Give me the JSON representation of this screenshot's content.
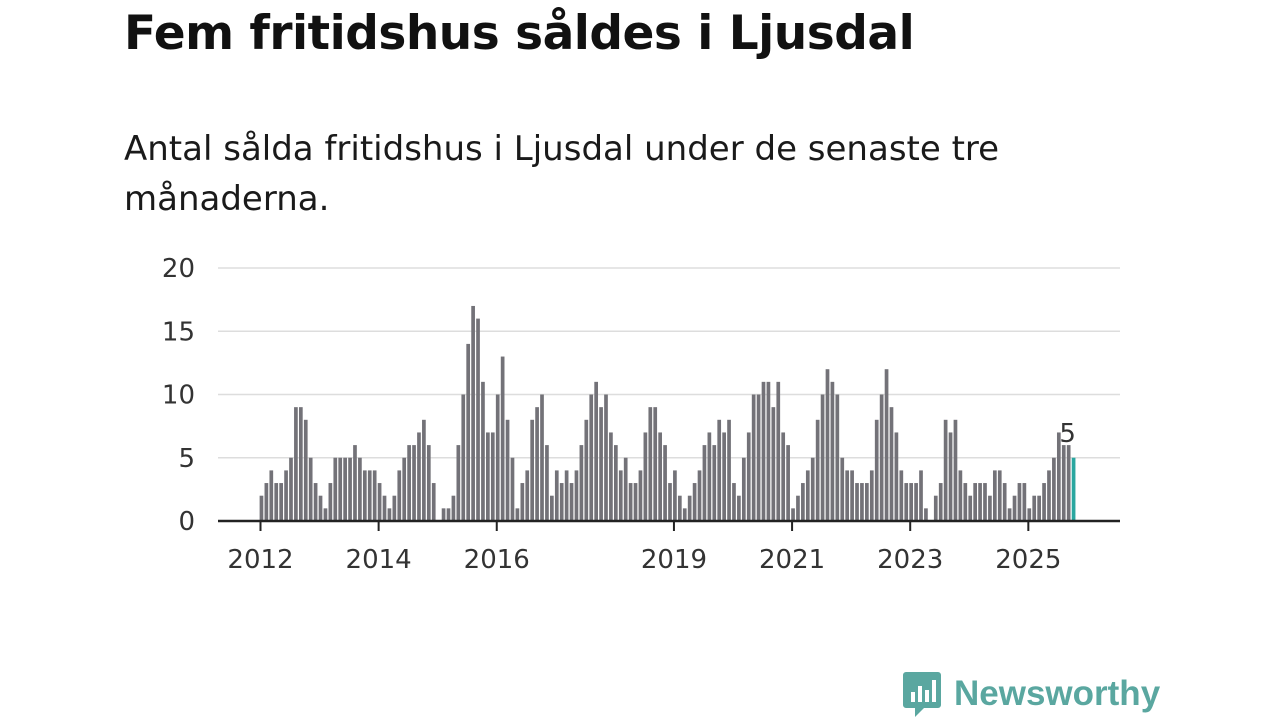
{
  "title": "Fem fritidshus såldes i Ljusdal",
  "subtitle": "Antal sålda fritidshus i Ljusdal under de senaste tre månaderna.",
  "brand": {
    "name": "Newsworthy",
    "color": "#5aa7a0"
  },
  "colors": {
    "bar": "#737278",
    "highlight": "#2aa7a0",
    "grid": "#dddddd",
    "axis": "#222222"
  },
  "chart_data": {
    "type": "bar",
    "title": "Fem fritidshus såldes i Ljusdal",
    "subtitle": "Antal sålda fritidshus i Ljusdal under de senaste tre månaderna.",
    "xlabel": "",
    "ylabel": "",
    "start": "2012-01",
    "ylim": [
      0,
      20
    ],
    "yticks": [
      0,
      5,
      10,
      15,
      20
    ],
    "xticks": [
      {
        "label": "2012",
        "index": 0
      },
      {
        "label": "2014",
        "index": 24
      },
      {
        "label": "2016",
        "index": 48
      },
      {
        "label": "2019",
        "index": 84
      },
      {
        "label": "2021",
        "index": 108
      },
      {
        "label": "2023",
        "index": 132
      },
      {
        "label": "2025",
        "index": 156
      }
    ],
    "values": [
      2,
      3,
      4,
      3,
      3,
      4,
      5,
      9,
      9,
      8,
      5,
      3,
      2,
      1,
      3,
      5,
      5,
      5,
      5,
      6,
      5,
      4,
      4,
      4,
      3,
      2,
      1,
      2,
      4,
      5,
      6,
      6,
      7,
      8,
      6,
      3,
      0,
      1,
      1,
      2,
      6,
      10,
      14,
      17,
      16,
      11,
      7,
      7,
      10,
      13,
      8,
      5,
      1,
      3,
      4,
      8,
      9,
      10,
      6,
      2,
      4,
      3,
      4,
      3,
      4,
      6,
      8,
      10,
      11,
      9,
      10,
      7,
      6,
      4,
      5,
      3,
      3,
      4,
      7,
      9,
      9,
      7,
      6,
      3,
      4,
      2,
      1,
      2,
      3,
      4,
      6,
      7,
      6,
      8,
      7,
      8,
      3,
      2,
      5,
      7,
      10,
      10,
      11,
      11,
      9,
      11,
      7,
      6,
      1,
      2,
      3,
      4,
      5,
      8,
      10,
      12,
      11,
      10,
      5,
      4,
      4,
      3,
      3,
      3,
      4,
      8,
      10,
      12,
      9,
      7,
      4,
      3,
      3,
      3,
      4,
      1,
      0,
      2,
      3,
      8,
      7,
      8,
      4,
      3,
      2,
      3,
      3,
      3,
      2,
      4,
      4,
      3,
      1,
      2,
      3,
      3,
      1,
      2,
      2,
      3,
      4,
      5,
      7,
      6,
      6,
      5
    ],
    "highlight_index": 165,
    "annotation": {
      "index": 165,
      "label": "5"
    }
  }
}
